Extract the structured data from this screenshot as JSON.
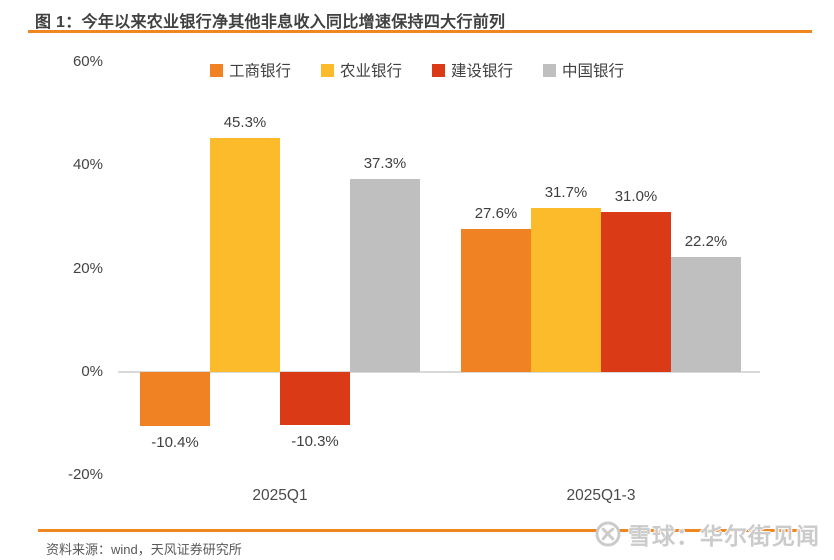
{
  "header": {
    "title": "图 1：今年以来农业银行净其他非息收入同比增速保持四大行前列"
  },
  "chart_data": {
    "type": "bar",
    "title": "今年以来农业银行净其他非息收入同比增速保持四大行前列",
    "categories": [
      "2025Q1",
      "2025Q1-3"
    ],
    "series": [
      {
        "key": "icbc",
        "name": "工商银行",
        "color": "#F08223",
        "values": [
          -10.4,
          27.6
        ]
      },
      {
        "key": "abc",
        "name": "农业银行",
        "color": "#FBBB2B",
        "values": [
          45.3,
          31.7
        ]
      },
      {
        "key": "ccb",
        "name": "建设银行",
        "color": "#DB3A17",
        "values": [
          -10.3,
          31.0
        ]
      },
      {
        "key": "boc",
        "name": "中国银行",
        "color": "#BFBFBF",
        "values": [
          37.3,
          22.2
        ]
      }
    ],
    "data_labels": [
      [
        "-10.4%",
        "27.6%"
      ],
      [
        "45.3%",
        "31.7%"
      ],
      [
        "-10.3%",
        "31.0%"
      ],
      [
        "37.3%",
        "22.2%"
      ]
    ],
    "ylabel": "",
    "xlabel": "",
    "yticks": [
      60,
      40,
      20,
      0,
      -20
    ],
    "ytick_suffix": "%",
    "ylim": [
      -20,
      60
    ],
    "grid": false,
    "legend_position": "top",
    "axis_line_color": "#D9D9D9"
  },
  "footer": {
    "source": "资料来源：wind，天风证券研究所",
    "watermark_text": "雪球：华尔街见闻",
    "watermark_icon": "xueqiu-logo"
  },
  "theme": {
    "accent_rule": "#F0861F",
    "title_text": "#404040",
    "label_text": "#404040",
    "source_text": "#595959",
    "watermark_text_color": "#CBCBCB"
  }
}
